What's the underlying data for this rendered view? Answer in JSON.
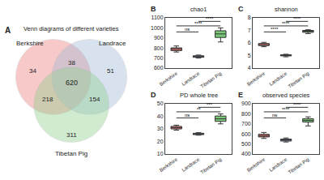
{
  "chart_data": [
    {
      "type": "venn",
      "title": "Venn diagrams of different varieties",
      "panel": "A",
      "sets": [
        {
          "name": "Berkshire",
          "color": "#f08080"
        },
        {
          "name": "Landrace",
          "color": "#a4bcd8"
        },
        {
          "name": "Tibetan Pig",
          "color": "#90d090"
        }
      ],
      "values": [
        34,
        51,
        311,
        38,
        218,
        154,
        620
      ]
    },
    {
      "type": "box",
      "title": "chao1",
      "panel": "B",
      "categories": [
        "Berkshire",
        "Landrace",
        "Tibetan Pig"
      ],
      "colors": [
        "#e87878",
        "#7898c8",
        "#78c878"
      ],
      "values": [
        [
          760,
          790,
          820,
          800,
          780,
          770,
          810,
          795,
          785,
          775,
          805,
          765,
          798
        ],
        [
          700,
          715,
          730,
          708,
          722,
          712,
          726,
          704,
          718,
          710,
          724,
          706,
          716
        ],
        [
          860,
          910,
          960,
          1000,
          930,
          890,
          970,
          940,
          880,
          950,
          995,
          920,
          975
        ]
      ],
      "ylim": [
        600,
        1100
      ],
      "yticks": [
        600,
        700,
        800,
        900,
        1000,
        1100
      ],
      "grid": false,
      "annotations": [
        {
          "text": "ns",
          "from": "Berkshire",
          "to": "Landrace"
        },
        {
          "text": "****",
          "from": "Berkshire",
          "to": "Tibetan Pig"
        },
        {
          "text": "****",
          "from": "Landrace",
          "to": "Tibetan Pig"
        }
      ]
    },
    {
      "type": "box",
      "title": "shannon",
      "panel": "C",
      "categories": [
        "Berkshire",
        "Landrace",
        "Tibetan Pig"
      ],
      "colors": [
        "#e87878",
        "#7898c8",
        "#78c878"
      ],
      "values": [
        [
          5.7,
          5.85,
          5.95,
          5.8,
          6.05,
          5.75,
          5.9,
          5.82,
          6.0,
          5.78,
          5.88,
          5.98,
          5.83
        ],
        [
          4.9,
          5.0,
          5.1,
          5.05,
          4.95,
          5.02,
          5.08,
          4.98,
          5.04,
          5.0,
          5.1,
          4.95,
          5.05
        ],
        [
          6.75,
          6.95,
          7.05,
          6.85,
          7.0,
          6.9,
          7.02,
          6.8,
          6.97,
          6.87,
          6.98,
          6.83,
          7.0
        ]
      ],
      "ylim": [
        4,
        8
      ],
      "yticks": [
        4,
        5,
        6,
        7,
        8
      ],
      "grid": false,
      "annotations": [
        {
          "text": "****",
          "from": "Berkshire",
          "to": "Landrace"
        },
        {
          "text": "****",
          "from": "Berkshire",
          "to": "Tibetan Pig"
        },
        {
          "text": "****",
          "from": "Landrace",
          "to": "Tibetan Pig"
        }
      ]
    },
    {
      "type": "box",
      "title": "PD whole tree",
      "panel": "D",
      "categories": [
        "Berkshire",
        "Landrace",
        "Tibetan Pig"
      ],
      "colors": [
        "#e87878",
        "#7898c8",
        "#78c878"
      ],
      "values": [
        [
          29,
          31,
          33,
          30,
          32,
          29.5,
          31.5,
          30.5,
          32.5,
          30,
          31,
          32,
          30.5
        ],
        [
          25,
          26,
          27,
          25.5,
          26.5,
          25.8,
          26.2,
          25.3,
          26.7,
          26,
          25.5,
          26.8,
          25.2
        ],
        [
          34,
          37,
          41,
          39,
          36,
          38,
          42,
          35,
          40,
          37,
          41,
          36,
          39
        ]
      ],
      "ylim": [
        10,
        50
      ],
      "yticks": [
        10,
        20,
        30,
        40,
        50
      ],
      "grid": false,
      "annotations": [
        {
          "text": "ns",
          "from": "Berkshire",
          "to": "Landrace"
        },
        {
          "text": "**",
          "from": "Berkshire",
          "to": "Tibetan Pig"
        },
        {
          "text": "***",
          "from": "Landrace",
          "to": "Tibetan Pig"
        }
      ]
    },
    {
      "type": "box",
      "title": "observed species",
      "panel": "E",
      "categories": [
        "Berkshire",
        "Landrace",
        "Tibetan Pig"
      ],
      "colors": [
        "#e87878",
        "#7898c8",
        "#78c878"
      ],
      "values": [
        [
          555,
          580,
          615,
          575,
          595,
          565,
          605,
          582,
          592,
          572,
          602,
          562,
          590
        ],
        [
          520,
          540,
          560,
          530,
          550,
          525,
          545,
          535,
          555,
          538,
          548,
          528,
          542
        ],
        [
          680,
          730,
          770,
          750,
          730,
          710,
          760,
          745,
          735,
          720,
          755,
          715,
          742
        ]
      ],
      "ylim": [
        400,
        900
      ],
      "yticks": [
        400,
        500,
        600,
        700,
        800,
        900
      ],
      "grid": false,
      "annotations": [
        {
          "text": "ns",
          "from": "Berkshire",
          "to": "Landrace"
        },
        {
          "text": "****",
          "from": "Berkshire",
          "to": "Tibetan Pig"
        },
        {
          "text": "****",
          "from": "Landrace",
          "to": "Tibetan Pig"
        }
      ]
    }
  ]
}
